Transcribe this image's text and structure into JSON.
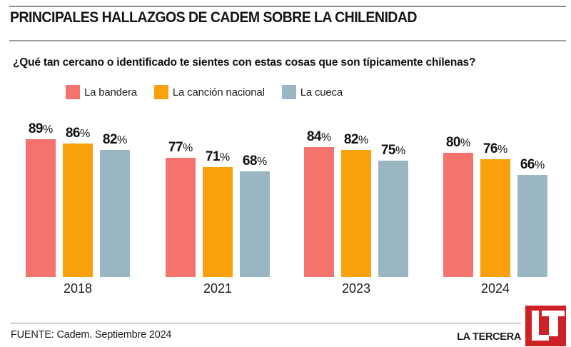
{
  "page": {
    "title": "PRINCIPALES HALLAZGOS DE CADEM SOBRE LA CHILENIDAD",
    "question": "¿Qué tan cercano o identificado te sientes con estas cosas que son típicamente chilenas?"
  },
  "chart_data": {
    "type": "bar",
    "unit": "%",
    "categories": [
      "2018",
      "2021",
      "2023",
      "2024"
    ],
    "series": [
      {
        "name": "La bandera",
        "color": "#F4736C",
        "values": [
          89,
          77,
          84,
          80
        ]
      },
      {
        "name": "La canción nacional",
        "color": "#FAA00D",
        "values": [
          86,
          71,
          82,
          76
        ]
      },
      {
        "name": "La cueca",
        "color": "#9AB6C3",
        "values": [
          82,
          68,
          75,
          66
        ]
      }
    ],
    "ylim": [
      0,
      100
    ],
    "value_labels": true,
    "legend_position": "top",
    "grid": false,
    "xlabel": "",
    "ylabel": ""
  },
  "footer": {
    "source": "FUENTE: Cadem. Septiembre 2024",
    "brand": "LA TERCERA",
    "logo_text": "LT",
    "logo_color": "#CE2027"
  }
}
